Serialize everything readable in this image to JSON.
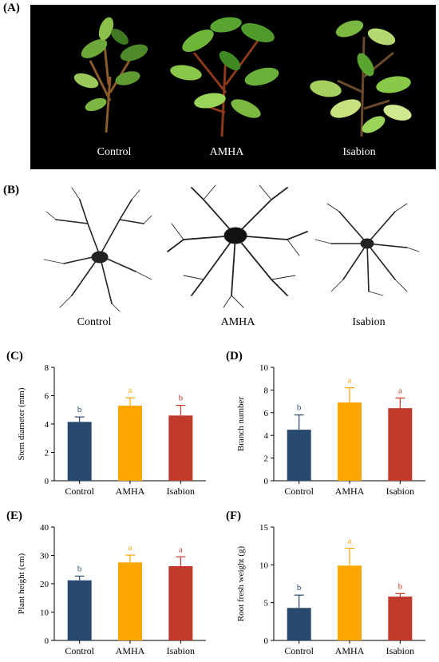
{
  "panels": {
    "a": "(A)",
    "b": "(B)"
  },
  "photos": {
    "plants": [
      {
        "caption": "Control"
      },
      {
        "caption": "AMHA"
      },
      {
        "caption": "Isabion"
      }
    ],
    "roots": [
      {
        "caption": "Control"
      },
      {
        "caption": "AMHA"
      },
      {
        "caption": "Isabion"
      }
    ]
  },
  "colors": {
    "Control": "#27496d",
    "AMHA": "#ffa500",
    "Isabion": "#c0392b"
  },
  "chart_data": [
    {
      "panel": "(C)",
      "type": "bar",
      "categories": [
        "Control",
        "AMHA",
        "Isabion"
      ],
      "values": [
        4.15,
        5.3,
        4.6
      ],
      "errors": [
        0.35,
        0.55,
        0.72
      ],
      "letters": [
        "b",
        "a",
        "b"
      ],
      "ylabel": "Stem diameter (mm)",
      "xlabel": "",
      "ylim": [
        0,
        8
      ],
      "yticks": [
        0,
        2,
        4,
        6,
        8
      ]
    },
    {
      "panel": "(D)",
      "type": "bar",
      "categories": [
        "Control",
        "AMHA",
        "Isabion"
      ],
      "values": [
        4.5,
        6.9,
        6.4
      ],
      "errors": [
        1.3,
        1.3,
        0.9
      ],
      "letters": [
        "b",
        "a",
        "a"
      ],
      "ylabel": "Branch number",
      "xlabel": "",
      "ylim": [
        0,
        10
      ],
      "yticks": [
        0,
        2,
        4,
        6,
        8,
        10
      ]
    },
    {
      "panel": "(E)",
      "type": "bar",
      "categories": [
        "Control",
        "AMHA",
        "Isabion"
      ],
      "values": [
        21.2,
        27.5,
        26.2
      ],
      "errors": [
        1.5,
        2.6,
        3.3
      ],
      "letters": [
        "b",
        "a",
        "a"
      ],
      "ylabel": "Plant height (cm)",
      "xlabel": "",
      "ylim": [
        0,
        40
      ],
      "yticks": [
        0,
        10,
        20,
        30,
        40
      ]
    },
    {
      "panel": "(F)",
      "type": "bar",
      "categories": [
        "Control",
        "AMHA",
        "Isabion"
      ],
      "values": [
        4.3,
        9.9,
        5.8
      ],
      "errors": [
        1.7,
        2.3,
        0.4
      ],
      "letters": [
        "b",
        "a",
        "b"
      ],
      "ylabel": "Root fresh weight (g)",
      "xlabel": "",
      "ylim": [
        0,
        15
      ],
      "yticks": [
        0,
        5,
        10,
        15
      ]
    }
  ]
}
